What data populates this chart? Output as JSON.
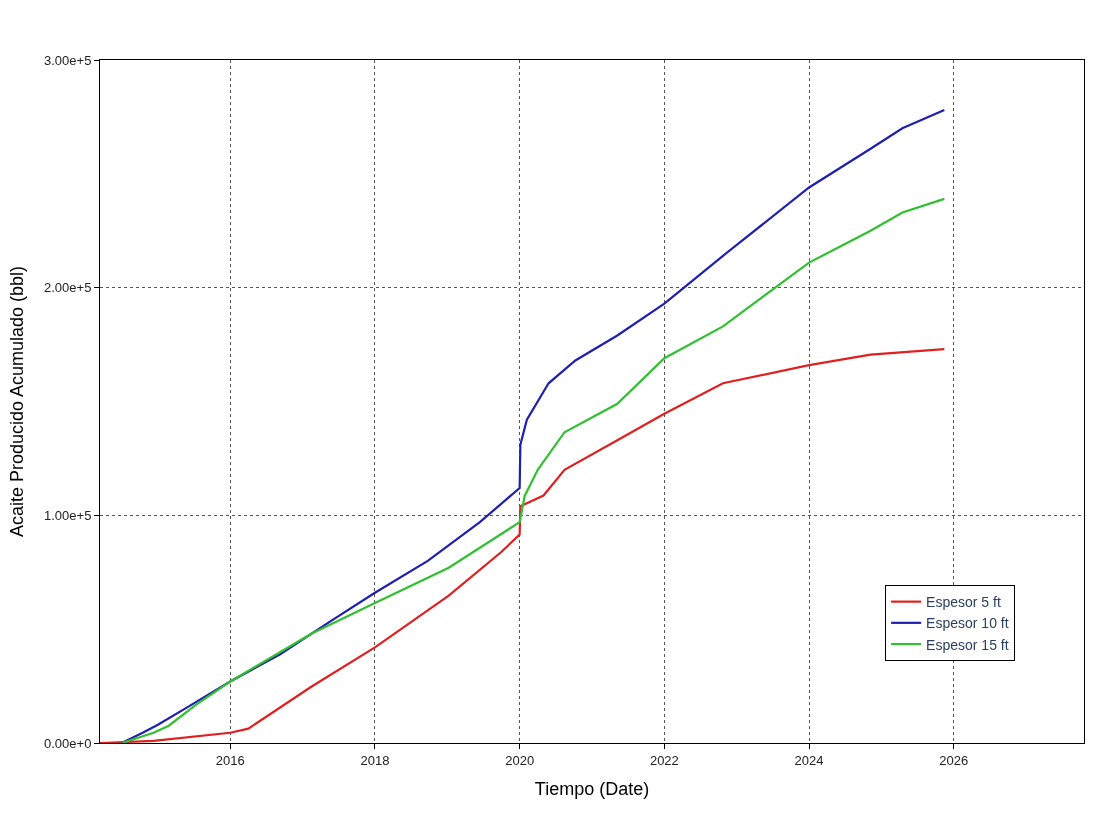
{
  "chart_data": {
    "type": "line",
    "xlabel": "Tiempo (Date)",
    "ylabel": "Acaite Producido Acumulado (bbl)",
    "xlim": [
      2014.2,
      2027.8
    ],
    "xticks": [
      2016,
      2018,
      2020,
      2022,
      2024,
      2026
    ],
    "ylim": [
      0,
      300000
    ],
    "yticks": [
      {
        "value": 0,
        "label": "0.00e+0"
      },
      {
        "value": 100000,
        "label": "1.00e+5"
      },
      {
        "value": 200000,
        "label": "2.00e+5"
      },
      {
        "value": 300000,
        "label": "3.00e+5"
      }
    ],
    "grid": true,
    "legend": "bottom right",
    "marker": "none",
    "line_style": "solid",
    "series": [
      {
        "name": "Espesor 5 ft",
        "color": "#e02020",
        "x": [
          2014.2,
          2014.94,
          2016.0,
          2016.25,
          2017.12,
          2018.0,
          2019.02,
          2019.75,
          2020.0,
          2020.01,
          2020.33,
          2020.62,
          2021.35,
          2022.0,
          2022.81,
          2024.0,
          2024.85,
          2025.87
        ],
        "values": [
          0,
          900,
          4500,
          6300,
          24700,
          42000,
          64700,
          84000,
          91600,
          104000,
          108700,
          120000,
          133000,
          144600,
          158000,
          166000,
          170600,
          173000
        ]
      },
      {
        "name": "Espesor 10 ft",
        "color": "#2020b0",
        "x": [
          2014.5,
          2014.79,
          2015.0,
          2015.37,
          2016.0,
          2016.69,
          2017.41,
          2018.0,
          2018.73,
          2019.45,
          2020.0,
          2020.01,
          2020.1,
          2020.4,
          2020.77,
          2021.35,
          2022.0,
          2022.81,
          2024.0,
          2024.85,
          2025.29,
          2025.87
        ],
        "values": [
          0,
          4500,
          8000,
          15000,
          27000,
          39000,
          54000,
          66000,
          80000,
          97000,
          112000,
          131000,
          142000,
          158000,
          168000,
          179000,
          193000,
          214000,
          244000,
          261000,
          270000,
          278000
        ]
      },
      {
        "name": "Espesor 15 ft",
        "color": "#30c030",
        "x": [
          2014.5,
          2014.94,
          2015.15,
          2015.52,
          2016.0,
          2017.12,
          2018.0,
          2019.02,
          2020.0,
          2020.07,
          2020.25,
          2020.62,
          2021.35,
          2022.0,
          2022.81,
          2024.0,
          2024.85,
          2025.29,
          2025.87
        ],
        "values": [
          0,
          4500,
          7600,
          16600,
          27000,
          48000,
          61500,
          77000,
          97000,
          108500,
          120000,
          136500,
          149000,
          169000,
          183000,
          211000,
          225000,
          233000,
          239000
        ]
      }
    ]
  }
}
